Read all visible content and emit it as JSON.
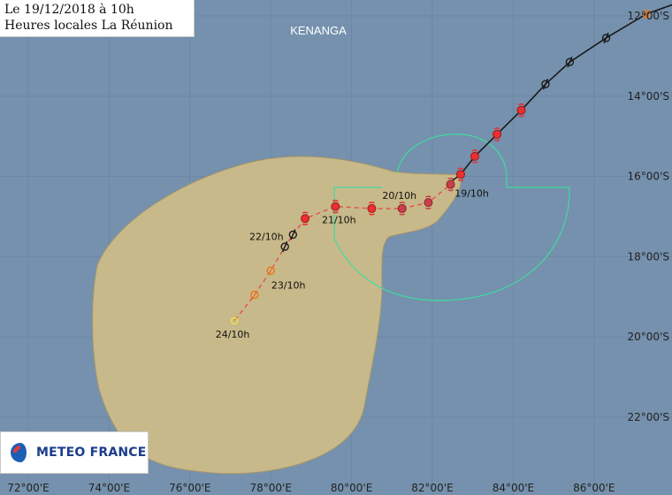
{
  "header": {
    "date_line": "Le 19/12/2018 à 10h",
    "tz_line": "Heures locales La Réunion"
  },
  "storm_name": "KENANGA",
  "logo": {
    "text": "METEO FRANCE"
  },
  "colors": {
    "ocean": "#7591ad",
    "grid": "#6c87a3",
    "uncertainty_cone": "#c8b98a",
    "wind_radius": "#3fdca0",
    "past_track": "#1a1a1a",
    "forecast_track": "#e05050",
    "forecast_point": "#e83030",
    "label": "#111111",
    "axis_label": "#222222"
  },
  "axes": {
    "longitude_labels": [
      "72°00'E",
      "74°00'E",
      "76°00'E",
      "78°00'E",
      "80°00'E",
      "82°00'E",
      "84°00'E",
      "86°00'E"
    ],
    "latitude_labels": [
      "12°00'S",
      "14°00'S",
      "16°00'S",
      "18°00'S",
      "20°00'S",
      "22°00'S"
    ]
  },
  "past_track": [
    {
      "lon": 88.0,
      "lat": -11.7
    },
    {
      "lon": 87.3,
      "lat": -11.95,
      "symbol": "orange-circle"
    },
    {
      "lon": 86.3,
      "lat": -12.55,
      "symbol": "black-cyclone"
    },
    {
      "lon": 85.4,
      "lat": -13.15,
      "symbol": "black-cyclone"
    },
    {
      "lon": 84.8,
      "lat": -13.7,
      "symbol": "black-cyclone"
    },
    {
      "lon": 84.2,
      "lat": -14.35,
      "symbol": "red-dot"
    },
    {
      "lon": 83.6,
      "lat": -14.95,
      "symbol": "red-dot"
    },
    {
      "lon": 83.05,
      "lat": -15.5,
      "symbol": "red-dot"
    },
    {
      "lon": 82.7,
      "lat": -15.95,
      "symbol": "red-dot"
    },
    {
      "lon": 82.5,
      "lat": -16.1
    }
  ],
  "forecast_track": [
    {
      "lon": 82.45,
      "lat": -16.2,
      "label": "19/10h",
      "symbol": "red-dot-dark"
    },
    {
      "lon": 81.9,
      "lat": -16.65,
      "symbol": "red-dot-dark"
    },
    {
      "lon": 81.25,
      "lat": -16.8,
      "label": "20/10h",
      "symbol": "red-dot-dark"
    },
    {
      "lon": 80.5,
      "lat": -16.8,
      "symbol": "red-dot"
    },
    {
      "lon": 79.6,
      "lat": -16.75,
      "label": "21/10h",
      "symbol": "red-dot"
    },
    {
      "lon": 78.85,
      "lat": -17.05,
      "symbol": "red-dot"
    },
    {
      "lon": 78.55,
      "lat": -17.45,
      "label": "22/10h",
      "symbol": "black-cyclone"
    },
    {
      "lon": 78.35,
      "lat": -17.75,
      "symbol": "black-cyclone"
    },
    {
      "lon": 78.0,
      "lat": -18.35,
      "label": "23/10h",
      "symbol": "orange-circle"
    },
    {
      "lon": 77.6,
      "lat": -18.95,
      "symbol": "orange-circle"
    },
    {
      "lon": 77.1,
      "lat": -19.6,
      "label": "24/10h",
      "symbol": "yellow-circle"
    }
  ]
}
